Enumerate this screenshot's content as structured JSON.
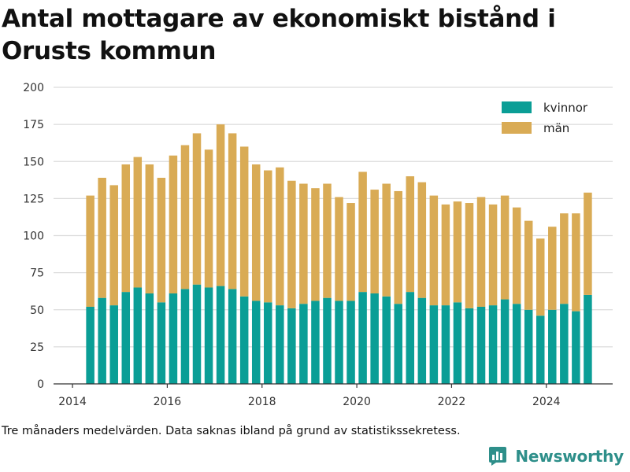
{
  "title": "Antal mottagare av ekonomiskt bistånd i Orusts kommun",
  "caption": "Tre månaders medelvärden. Data saknas ibland på grund av statistikssekretess.",
  "brand": {
    "name": "Newsworthy",
    "icon": "newsworthy-chart-logo-icon",
    "color": "#2e8f8a"
  },
  "chart_data": {
    "type": "bar",
    "stacked": true,
    "title": "Antal mottagare av ekonomiskt bistånd i Orusts kommun",
    "xlabel": "",
    "ylabel": "",
    "ylim": [
      0,
      200
    ],
    "yticks": [
      0,
      25,
      50,
      75,
      100,
      125,
      150,
      175,
      200
    ],
    "xlim": [
      2013.6,
      2025.4
    ],
    "xticks": [
      2014,
      2016,
      2018,
      2020,
      2022,
      2024
    ],
    "grid": true,
    "legend_position": "top-right",
    "x": [
      2014.375,
      2014.625,
      2014.875,
      2015.125,
      2015.375,
      2015.625,
      2015.875,
      2016.125,
      2016.375,
      2016.625,
      2016.875,
      2017.125,
      2017.375,
      2017.625,
      2017.875,
      2018.125,
      2018.375,
      2018.625,
      2018.875,
      2019.125,
      2019.375,
      2019.625,
      2019.875,
      2020.125,
      2020.375,
      2020.625,
      2020.875,
      2021.125,
      2021.375,
      2021.625,
      2021.875,
      2022.125,
      2022.375,
      2022.625,
      2022.875,
      2023.125,
      2023.375,
      2023.625,
      2023.875,
      2024.125,
      2024.375,
      2024.625,
      2024.875
    ],
    "series": [
      {
        "name": "kvinnor",
        "color": "#0a9e96",
        "values": [
          52,
          58,
          53,
          62,
          65,
          61,
          55,
          61,
          64,
          67,
          65,
          66,
          64,
          59,
          56,
          55,
          53,
          51,
          54,
          56,
          58,
          56,
          56,
          62,
          61,
          59,
          54,
          62,
          58,
          53,
          53,
          55,
          51,
          52,
          53,
          57,
          54,
          50,
          46,
          50,
          54,
          49,
          60
        ]
      },
      {
        "name": "män",
        "color": "#d9ab55",
        "values": [
          75,
          81,
          81,
          86,
          88,
          87,
          84,
          93,
          97,
          102,
          93,
          109,
          105,
          101,
          92,
          89,
          93,
          86,
          81,
          76,
          77,
          70,
          66,
          81,
          70,
          76,
          76,
          78,
          78,
          74,
          68,
          68,
          71,
          74,
          68,
          70,
          65,
          60,
          52,
          56,
          61,
          66,
          69
        ]
      }
    ]
  }
}
